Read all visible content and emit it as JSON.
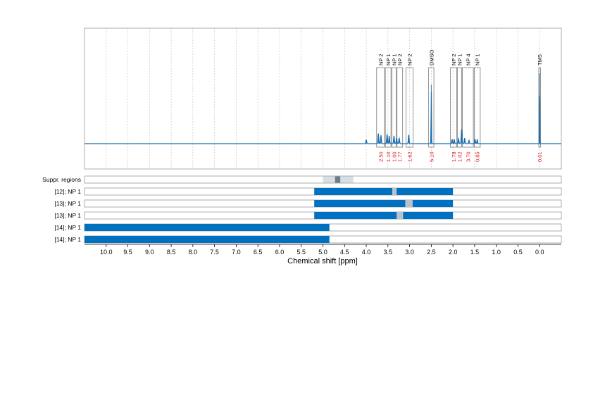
{
  "chart_data": {
    "type": "line",
    "xlabel": "Chemical shift [ppm]",
    "x_reversed": true,
    "xlim": [
      10.5,
      -0.5
    ],
    "x_ticks": [
      "10.0",
      "9.5",
      "9.0",
      "8.5",
      "8.0",
      "7.5",
      "7.0",
      "6.5",
      "6.0",
      "5.5",
      "5.0",
      "4.5",
      "4.0",
      "3.5",
      "3.0",
      "2.5",
      "2.0",
      "1.5",
      "1.0",
      "0.5",
      "0.0"
    ],
    "grid": "vertical dotted",
    "colors": {
      "spectrum": "#1a6fb0",
      "bar": "#0070c0",
      "overlap": "#b8c2cc",
      "integral": "#e31a1c",
      "suppr": "#d6dee6",
      "suppr_dark": "#6b7d8c"
    },
    "spectrum_peaks": [
      {
        "ppm": 4.0,
        "height": 0.07
      },
      {
        "ppm": 3.72,
        "height": 0.18
      },
      {
        "ppm": 3.66,
        "height": 0.15
      },
      {
        "ppm": 3.52,
        "height": 0.17
      },
      {
        "ppm": 3.47,
        "height": 0.14
      },
      {
        "ppm": 3.36,
        "height": 0.14
      },
      {
        "ppm": 3.3,
        "height": 0.1
      },
      {
        "ppm": 3.24,
        "height": 0.1
      },
      {
        "ppm": 3.02,
        "height": 0.16
      },
      {
        "ppm": 2.5,
        "height": 1.05
      },
      {
        "ppm": 2.02,
        "height": 0.08
      },
      {
        "ppm": 1.97,
        "height": 0.08
      },
      {
        "ppm": 1.87,
        "height": 0.09
      },
      {
        "ppm": 1.8,
        "height": 0.26
      },
      {
        "ppm": 1.73,
        "height": 0.1
      },
      {
        "ppm": 1.63,
        "height": 0.06
      },
      {
        "ppm": 1.49,
        "height": 0.08
      },
      {
        "ppm": 1.44,
        "height": 0.07
      },
      {
        "ppm": 0.0,
        "height": 1.25
      }
    ],
    "signal_regions": [
      {
        "label": "NP 2",
        "from": 3.76,
        "to": 3.58,
        "integral": "2.50"
      },
      {
        "label": "NP 1",
        "from": 3.56,
        "to": 3.43,
        "integral": "1.10"
      },
      {
        "label": "NP 1",
        "from": 3.41,
        "to": 3.31,
        "integral": "1.00"
      },
      {
        "label": "NP 2",
        "from": 3.29,
        "to": 3.16,
        "integral": "1.77"
      },
      {
        "label": "NP 2",
        "from": 3.08,
        "to": 2.92,
        "integral": "1.62"
      },
      {
        "label": "DMSO",
        "from": 2.56,
        "to": 2.44,
        "integral": "5.10"
      },
      {
        "label": "NP 2",
        "from": 2.06,
        "to": 1.91,
        "integral": "1.78"
      },
      {
        "label": "NP 1",
        "from": 1.9,
        "to": 1.8,
        "integral": "1.02"
      },
      {
        "label": "NP 4",
        "from": 1.78,
        "to": 1.53,
        "integral": "3.70"
      },
      {
        "label": "NP 1",
        "from": 1.51,
        "to": 1.37,
        "integral": "0.85"
      },
      {
        "label": "TMS",
        "from": 0.02,
        "to": -0.02,
        "integral": "0.01"
      }
    ],
    "rows": [
      {
        "label": "Suppr. regions",
        "kind": "suppressed",
        "ranges": [
          [
            5.0,
            4.3
          ]
        ],
        "dark_ranges": [
          [
            4.72,
            4.6
          ]
        ]
      },
      {
        "label": "[12]; NP 1",
        "kind": "bar",
        "ranges": [
          [
            5.2,
            2.0
          ]
        ],
        "overlap_ranges": [
          [
            3.4,
            3.3
          ]
        ]
      },
      {
        "label": "[13]; NP 1",
        "kind": "bar",
        "ranges": [
          [
            5.2,
            2.0
          ]
        ],
        "overlap_ranges": [
          [
            3.1,
            2.93
          ]
        ]
      },
      {
        "label": "[13]; NP 1",
        "kind": "bar",
        "ranges": [
          [
            5.2,
            2.0
          ]
        ],
        "overlap_ranges": [
          [
            3.3,
            3.15
          ]
        ]
      },
      {
        "label": "[14]; NP 1",
        "kind": "bar",
        "ranges": [
          [
            10.5,
            4.85
          ]
        ],
        "overlap_ranges": []
      },
      {
        "label": "[14]; NP 1",
        "kind": "bar",
        "ranges": [
          [
            10.5,
            4.85
          ]
        ],
        "overlap_ranges": []
      }
    ]
  }
}
